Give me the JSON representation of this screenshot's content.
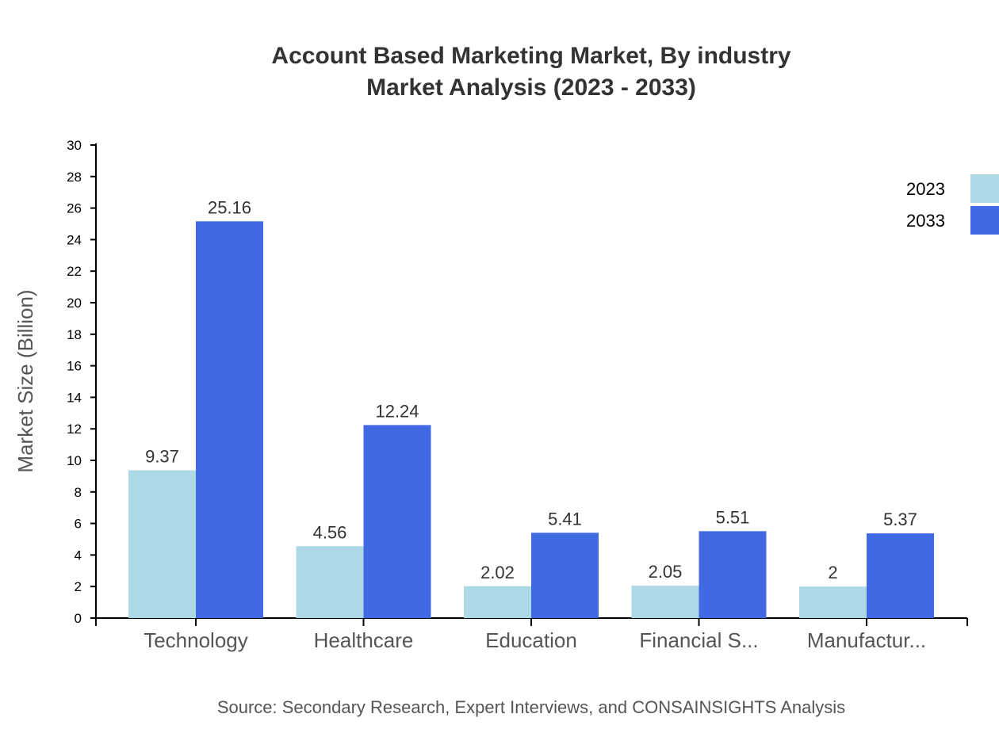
{
  "chart_data": {
    "type": "bar",
    "title": "Account Based Marketing Market, By industry",
    "subtitle": "Market Analysis (2023 - 2033)",
    "xlabel": "",
    "ylabel": "Market Size (Billion)",
    "ylim": [
      0,
      30
    ],
    "yticks": [
      0,
      2,
      4,
      6,
      8,
      10,
      12,
      14,
      16,
      18,
      20,
      22,
      24,
      26,
      28,
      30
    ],
    "categories": [
      "Technology",
      "Healthcare",
      "Education",
      "Financial S...",
      "Manufactur..."
    ],
    "series": [
      {
        "name": "2023",
        "color": "#add8e6",
        "values": [
          9.37,
          4.56,
          2.02,
          2.05,
          2
        ]
      },
      {
        "name": "2033",
        "color": "#4169e1",
        "values": [
          25.16,
          12.24,
          5.41,
          5.51,
          5.37
        ]
      }
    ],
    "legend_position": "top-right",
    "grid": false,
    "source": "Source: Secondary Research, Expert Interviews, and CONSAINSIGHTS Analysis"
  }
}
